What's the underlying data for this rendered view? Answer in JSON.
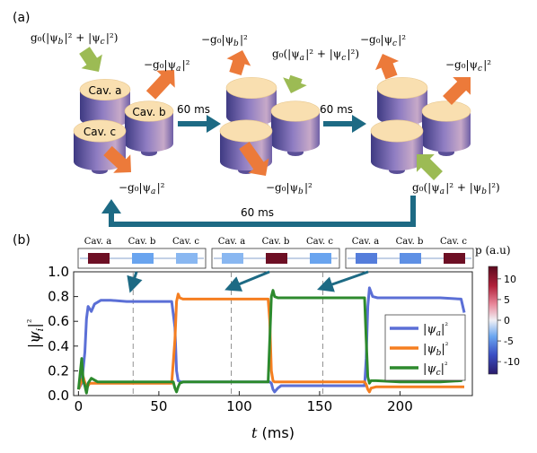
{
  "panel_a": {
    "label": "(a)",
    "step_time": "60 ms",
    "return_time": "60 ms",
    "cavity_labels": {
      "a": "Cav. a",
      "b": "Cav. b",
      "c": "Cav. c"
    },
    "states": [
      {
        "pump_text": "g₀(|ψ_b|² + |ψ_c|²)",
        "loss_texts": [
          "−g₀|ψ_a|²",
          "−g₀|ψ_a|²"
        ]
      },
      {
        "pump_text": "g₀(|ψ_a|² + |ψ_c|²)",
        "loss_texts": [
          "−g₀|ψ_b|²",
          "−g₀|ψ_b|²"
        ]
      },
      {
        "pump_text": "g₀(|ψ_a|² + |ψ_b|²)",
        "loss_texts": [
          "−g₀|ψ_c|²",
          "−g₀|ψ_c|²"
        ]
      }
    ],
    "colors": {
      "cavity": "#f9dfb0",
      "cavity_body": "#7b6fb0",
      "pump_arrow": "#9cbb54",
      "loss_arrow": "#ec7a3a",
      "flow_arrow": "#1d6a84"
    }
  },
  "panel_b": {
    "label": "(b)",
    "insets": [
      {
        "labels": [
          "Cav. a",
          "Cav. b",
          "Cav. c"
        ],
        "values": [
          12,
          -4,
          -3
        ]
      },
      {
        "labels": [
          "Cav. a",
          "Cav. b",
          "Cav. c"
        ],
        "values": [
          -3,
          12,
          -4
        ]
      },
      {
        "labels": [
          "Cav. a",
          "Cav. b",
          "Cav. c"
        ],
        "values": [
          -6,
          -5,
          12
        ]
      }
    ],
    "colorbar": {
      "title": "p (a.u)",
      "ticks": [
        "10",
        "5",
        "0",
        "-5",
        "-10"
      ],
      "min": -13,
      "max": 13
    }
  },
  "chart_data": {
    "type": "line",
    "xlabel": "t (ms)",
    "ylabel": "|ψ_i|²",
    "xlim": [
      -3,
      245
    ],
    "ylim": [
      0,
      1.0
    ],
    "xticks": [
      0,
      50,
      100,
      150,
      200
    ],
    "yticks": [
      0.0,
      0.2,
      0.4,
      0.6,
      0.8,
      1.0
    ],
    "vlines": [
      34,
      95,
      152
    ],
    "legend_position": "center-right",
    "series": [
      {
        "name": "|ψ_a|²",
        "color": "#5b6fd6",
        "x": [
          0,
          2,
          4,
          5,
          6,
          8,
          10,
          14,
          20,
          30,
          45,
          58,
          60,
          61,
          62,
          64,
          70,
          100,
          119,
          120,
          121,
          122,
          124,
          126,
          130,
          150,
          170,
          178,
          179,
          180,
          181,
          183,
          186,
          200,
          225,
          238,
          240
        ],
        "y": [
          0.05,
          0.1,
          0.35,
          0.62,
          0.72,
          0.68,
          0.74,
          0.77,
          0.77,
          0.76,
          0.76,
          0.76,
          0.55,
          0.2,
          0.12,
          0.11,
          0.11,
          0.11,
          0.11,
          0.1,
          0.05,
          0.03,
          0.06,
          0.08,
          0.08,
          0.08,
          0.08,
          0.08,
          0.3,
          0.72,
          0.87,
          0.8,
          0.79,
          0.79,
          0.79,
          0.78,
          0.67
        ]
      },
      {
        "name": "|ψ_b|²",
        "color": "#f57e20",
        "x": [
          0,
          3,
          5,
          7,
          10,
          20,
          40,
          58,
          60,
          61,
          62,
          63,
          65,
          70,
          100,
          118,
          119,
          120,
          121,
          122,
          124,
          130,
          160,
          178,
          179,
          180,
          181,
          182,
          185,
          200,
          225,
          240
        ],
        "y": [
          0.05,
          0.15,
          0.06,
          0.1,
          0.1,
          0.1,
          0.1,
          0.1,
          0.45,
          0.76,
          0.82,
          0.79,
          0.78,
          0.78,
          0.78,
          0.78,
          0.6,
          0.2,
          0.12,
          0.11,
          0.11,
          0.11,
          0.11,
          0.11,
          0.09,
          0.05,
          0.03,
          0.06,
          0.07,
          0.07,
          0.07,
          0.07
        ]
      },
      {
        "name": "|ψ_c|²",
        "color": "#2d8a2d",
        "x": [
          0,
          2,
          3,
          4,
          5,
          6,
          8,
          12,
          20,
          40,
          59,
          60,
          61,
          62,
          63,
          65,
          70,
          100,
          118,
          119,
          120,
          121,
          122,
          124,
          130,
          160,
          178,
          179,
          180,
          181,
          182,
          185,
          200,
          225,
          238,
          240
        ],
        "y": [
          0.05,
          0.3,
          0.12,
          0.08,
          0.02,
          0.1,
          0.14,
          0.11,
          0.11,
          0.11,
          0.11,
          0.06,
          0.03,
          0.07,
          0.1,
          0.11,
          0.11,
          0.11,
          0.11,
          0.45,
          0.8,
          0.85,
          0.8,
          0.79,
          0.79,
          0.79,
          0.79,
          0.45,
          0.15,
          0.1,
          0.12,
          0.12,
          0.11,
          0.11,
          0.12,
          0.17
        ]
      }
    ]
  }
}
